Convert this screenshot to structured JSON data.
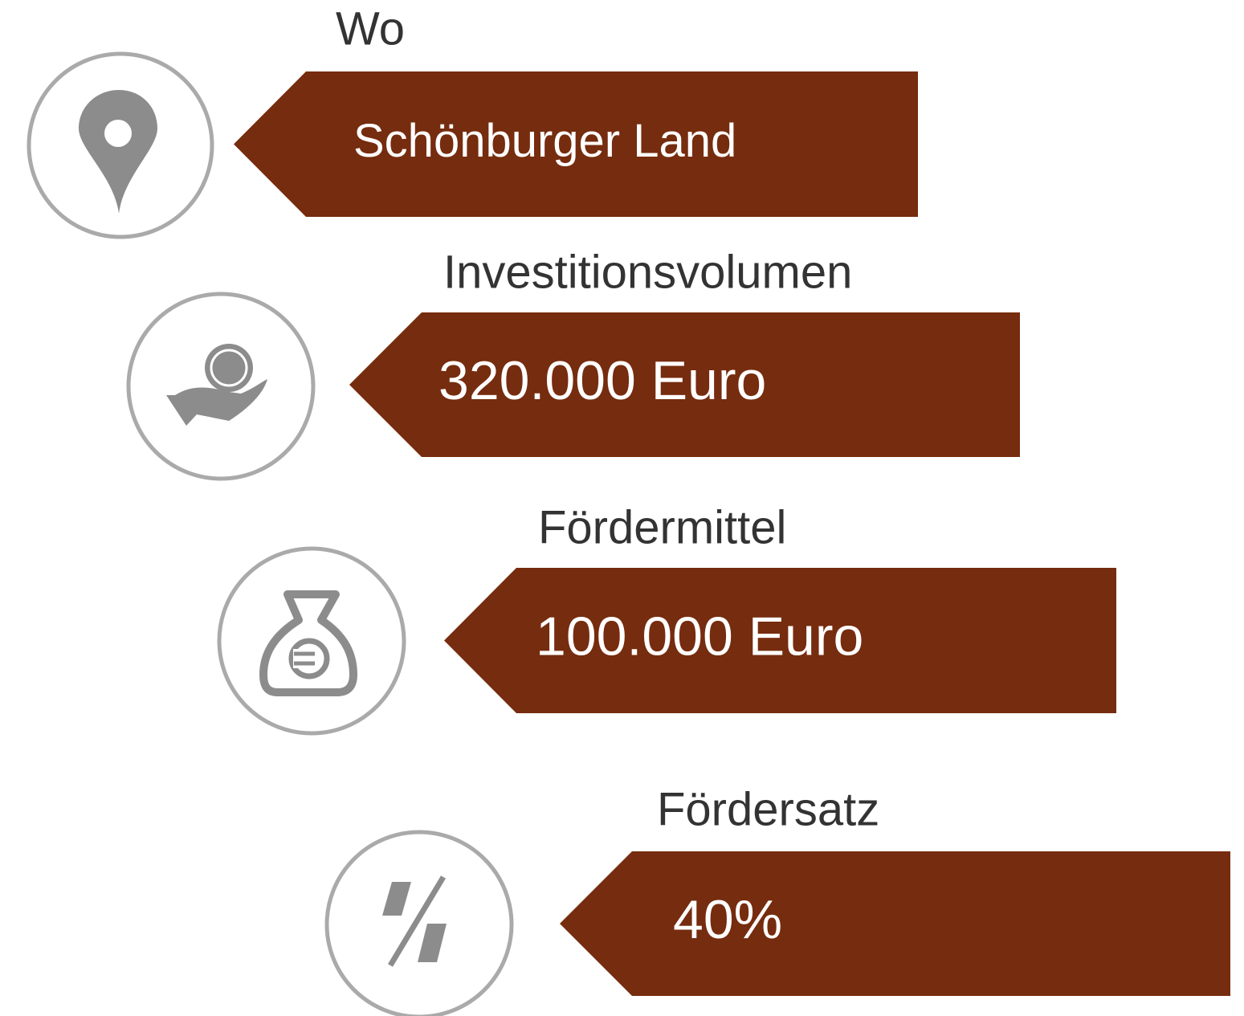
{
  "items": [
    {
      "label": "Wo",
      "value": "Schönburger Land"
    },
    {
      "label": "Investitionsvolumen",
      "value": "320.000 Euro"
    },
    {
      "label": "Fördermittel",
      "value": "100.000 Euro"
    },
    {
      "label": "Fördersatz",
      "value": "40%"
    }
  ]
}
